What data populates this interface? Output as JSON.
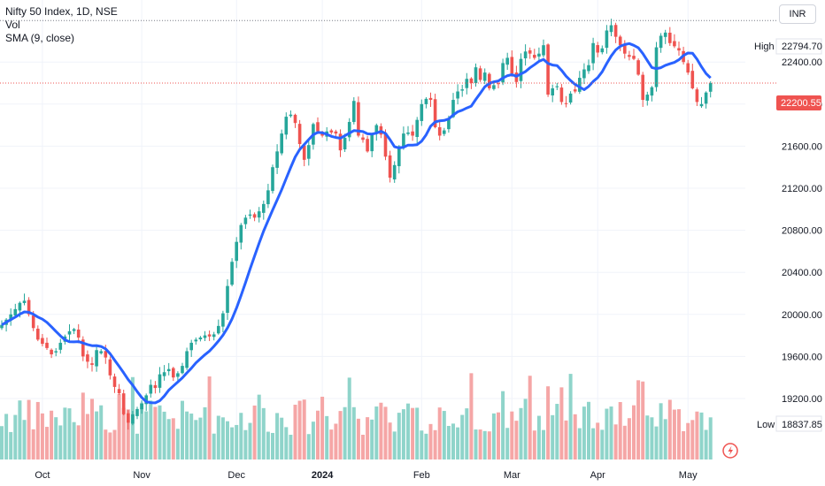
{
  "legend": {
    "title": "Nifty 50 Index, 1D, NSE",
    "vol": "Vol",
    "sma": "SMA (9, close)"
  },
  "currency": "INR",
  "high_label": "High",
  "low_label": "Low",
  "chart_data": {
    "type": "candlestick",
    "symbol": "Nifty 50 Index",
    "interval": "1D",
    "exchange": "NSE",
    "y_ticks": [
      19200,
      19600,
      20000,
      20400,
      20800,
      21200,
      21600,
      22000,
      22400
    ],
    "y_tick_labels": [
      "19200.00",
      "19600.00",
      "20000.00",
      "20400.00",
      "20800.00",
      "21200.00",
      "21600.00",
      "22000.00",
      "22400.00"
    ],
    "ylim": [
      18620,
      22990
    ],
    "x_labels": [
      {
        "label": "Oct",
        "bold": false,
        "index": 9
      },
      {
        "label": "Nov",
        "bold": false,
        "index": 31
      },
      {
        "label": "Dec",
        "bold": false,
        "index": 52
      },
      {
        "label": "2024",
        "bold": true,
        "index": 71
      },
      {
        "label": "Feb",
        "bold": false,
        "index": 93
      },
      {
        "label": "Mar",
        "bold": false,
        "index": 113
      },
      {
        "label": "Apr",
        "bold": false,
        "index": 132
      },
      {
        "label": "May",
        "bold": false,
        "index": 152
      }
    ],
    "high_value": "22794.70",
    "low_value": "18837.85",
    "last_price": "22200.55",
    "high": 22794.7,
    "low": 18837.85,
    "last": 22200.55,
    "colors": {
      "up": "#26a69a",
      "down": "#ef5350",
      "sma": "#2962ff",
      "vol_up": "#8fd4ca",
      "vol_down": "#f5a6a6"
    },
    "sma_period": 9,
    "close": [
      19900,
      19950,
      20000,
      20050,
      20110,
      20130,
      20000,
      19870,
      19760,
      19720,
      19680,
      19620,
      19650,
      19730,
      19790,
      19840,
      19860,
      19780,
      19600,
      19550,
      19520,
      19660,
      19650,
      19590,
      19420,
      19310,
      19250,
      19050,
      18970,
      19050,
      19100,
      19150,
      19230,
      19330,
      19300,
      19430,
      19450,
      19480,
      19400,
      19440,
      19510,
      19650,
      19730,
      19760,
      19780,
      19800,
      19790,
      19810,
      19890,
      20010,
      20270,
      20500,
      20690,
      20850,
      20920,
      20950,
      20920,
      20980,
      21050,
      21180,
      21400,
      21550,
      21720,
      21880,
      21900,
      21820,
      21620,
      21470,
      21610,
      21810,
      21740,
      21700,
      21740,
      21730,
      21720,
      21560,
      21680,
      21830,
      22030,
      21700,
      21660,
      21550,
      21710,
      21800,
      21710,
      21500,
      21300,
      21420,
      21600,
      21720,
      21730,
      21700,
      21850,
      22000,
      22050,
      22040,
      21780,
      21700,
      21750,
      21860,
      22040,
      22120,
      22140,
      22240,
      22200,
      22350,
      22230,
      22300,
      22150,
      22180,
      22190,
      22390,
      22440,
      22290,
      22210,
      22430,
      22500,
      22480,
      22440,
      22480,
      22560,
      22090,
      22150,
      22170,
      22020,
      22000,
      22100,
      22120,
      22250,
      22330,
      22370,
      22580,
      22490,
      22530,
      22700,
      22750,
      22640,
      22560,
      22480,
      22450,
      22430,
      22280,
      22040,
      22090,
      22160,
      22540,
      22650,
      22680,
      22580,
      22550,
      22510,
      22400,
      22300,
      22150,
      22020,
      22000,
      22110,
      22200
    ]
  }
}
